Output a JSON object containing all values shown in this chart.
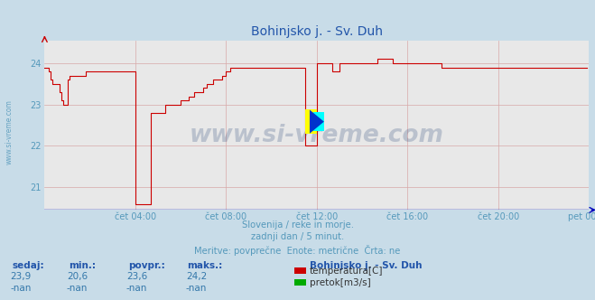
{
  "title": "Bohinjsko j. - Sv. Duh",
  "subtitle_lines": [
    "Slovenija / reke in morje.",
    "zadnji dan / 5 minut.",
    "Meritve: povprečne  Enote: metrične  Črta: ne"
  ],
  "xlabel_ticks": [
    "čet 04:00",
    "čet 08:00",
    "čet 12:00",
    "čet 16:00",
    "čet 20:00",
    "pet 00:00"
  ],
  "ylabel_ticks": [
    21,
    22,
    23,
    24
  ],
  "ylim": [
    20.45,
    24.55
  ],
  "xlim": [
    0,
    288
  ],
  "tick_positions_x": [
    48,
    96,
    144,
    192,
    240,
    288
  ],
  "bg_color": "#c8dce8",
  "plot_bg_color": "#e8e8e8",
  "grid_color": "#d8a8a8",
  "line_color": "#cc0000",
  "axis_color": "#0000bb",
  "text_color": "#5599bb",
  "title_color": "#2255aa",
  "info_text_color": "#5599bb",
  "table_header_color": "#2255aa",
  "table_value_color": "#3377aa",
  "legend_title": "Bohinjsko j. - Sv. Duh",
  "legend_items": [
    {
      "label": "temperatura[C]",
      "color": "#cc0000"
    },
    {
      "label": "pretok[m3/s]",
      "color": "#00aa00"
    }
  ],
  "table_headers": [
    "sedaj:",
    "min.:",
    "povpr.:",
    "maks.:"
  ],
  "table_row1": [
    "23,9",
    "20,6",
    "23,6",
    "24,2"
  ],
  "table_row2": [
    "-nan",
    "-nan",
    "-nan",
    "-nan"
  ],
  "watermark_text": "www.si-vreme.com",
  "temperature_data": [
    23.9,
    23.9,
    23.8,
    23.6,
    23.5,
    23.5,
    23.5,
    23.5,
    23.3,
    23.1,
    23.0,
    23.0,
    23.6,
    23.7,
    23.7,
    23.7,
    23.7,
    23.7,
    23.7,
    23.7,
    23.7,
    23.7,
    23.8,
    23.8,
    23.8,
    23.8,
    23.8,
    23.8,
    23.8,
    23.8,
    23.8,
    23.8,
    23.8,
    23.8,
    23.8,
    23.8,
    23.8,
    23.8,
    23.8,
    23.8,
    23.8,
    23.8,
    23.8,
    23.8,
    23.8,
    23.8,
    23.8,
    23.8,
    20.6,
    20.6,
    20.6,
    20.6,
    20.6,
    20.6,
    20.6,
    20.6,
    22.8,
    22.8,
    22.8,
    22.8,
    22.8,
    22.8,
    22.8,
    22.8,
    23.0,
    23.0,
    23.0,
    23.0,
    23.0,
    23.0,
    23.0,
    23.0,
    23.1,
    23.1,
    23.1,
    23.1,
    23.2,
    23.2,
    23.2,
    23.3,
    23.3,
    23.3,
    23.3,
    23.3,
    23.4,
    23.4,
    23.5,
    23.5,
    23.5,
    23.6,
    23.6,
    23.6,
    23.6,
    23.6,
    23.7,
    23.7,
    23.8,
    23.8,
    23.9,
    23.9,
    23.9,
    23.9,
    23.9,
    23.9,
    23.9,
    23.9,
    23.9,
    23.9,
    23.9,
    23.9,
    23.9,
    23.9,
    23.9,
    23.9,
    23.9,
    23.9,
    23.9,
    23.9,
    23.9,
    23.9,
    23.9,
    23.9,
    23.9,
    23.9,
    23.9,
    23.9,
    23.9,
    23.9,
    23.9,
    23.9,
    23.9,
    23.9,
    23.9,
    23.9,
    23.9,
    23.9,
    23.9,
    23.9,
    22.0,
    22.0,
    22.0,
    22.0,
    22.0,
    22.0,
    24.0,
    24.0,
    24.0,
    24.0,
    24.0,
    24.0,
    24.0,
    24.0,
    23.8,
    23.8,
    23.8,
    23.8,
    24.0,
    24.0,
    24.0,
    24.0,
    24.0,
    24.0,
    24.0,
    24.0,
    24.0,
    24.0,
    24.0,
    24.0,
    24.0,
    24.0,
    24.0,
    24.0,
    24.0,
    24.0,
    24.0,
    24.0,
    24.1,
    24.1,
    24.1,
    24.1,
    24.1,
    24.1,
    24.1,
    24.1,
    24.0,
    24.0,
    24.0,
    24.0,
    24.0,
    24.0,
    24.0,
    24.0,
    24.0,
    24.0,
    24.0,
    24.0,
    24.0,
    24.0,
    24.0,
    24.0,
    24.0,
    24.0,
    24.0,
    24.0,
    24.0,
    24.0,
    24.0,
    24.0,
    24.0,
    24.0,
    23.9,
    23.9,
    23.9,
    23.9,
    23.9,
    23.9,
    23.9,
    23.9,
    23.9,
    23.9,
    23.9,
    23.9,
    23.9,
    23.9,
    23.9,
    23.9,
    23.9,
    23.9,
    23.9,
    23.9,
    23.9,
    23.9,
    23.9,
    23.9,
    23.9,
    23.9,
    23.9,
    23.9,
    23.9,
    23.9,
    23.9,
    23.9,
    23.9,
    23.9,
    23.9,
    23.9,
    23.9,
    23.9,
    23.9,
    23.9,
    23.9,
    23.9,
    23.9,
    23.9,
    23.9,
    23.9,
    23.9,
    23.9,
    23.9,
    23.9,
    23.9,
    23.9,
    23.9,
    23.9,
    23.9,
    23.9,
    23.9,
    23.9,
    23.9,
    23.9,
    23.9,
    23.9,
    23.9,
    23.9,
    23.9,
    23.9,
    23.9,
    23.9,
    23.9,
    23.9,
    23.9,
    23.9,
    23.9,
    23.9,
    23.9,
    23.9,
    23.9,
    23.9
  ]
}
